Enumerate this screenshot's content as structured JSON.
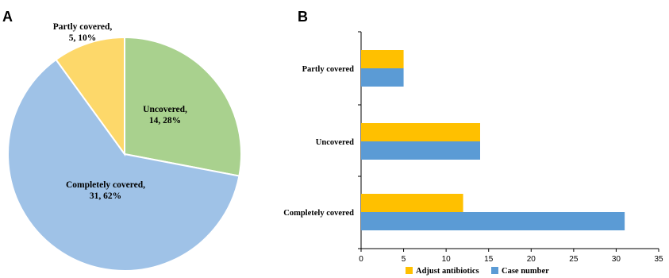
{
  "panels": {
    "a": "A",
    "b": "B"
  },
  "colors": {
    "completely_covered": "#9fc2e7",
    "uncovered": "#a9d18e",
    "partly_covered": "#fdd86a",
    "adjust_antibiotics": "#ffc000",
    "case_number": "#5b9bd5"
  },
  "chart_data": [
    {
      "type": "pie",
      "slices": [
        {
          "label_line1": "Uncovered,",
          "label_line2": "14, 28%",
          "value": 14,
          "percent": 28
        },
        {
          "label_line1": "Completely covered,",
          "label_line2": "31, 62%",
          "value": 31,
          "percent": 62
        },
        {
          "label_line1": "Partly covered,",
          "label_line2": "5, 10%",
          "value": 5,
          "percent": 10
        }
      ]
    },
    {
      "type": "bar",
      "orientation": "horizontal",
      "categories": [
        "Partly covered",
        "Uncovered",
        "Completely covered"
      ],
      "series": [
        {
          "name": "Adjust antibiotics",
          "values": [
            5,
            14,
            12
          ]
        },
        {
          "name": "Case number",
          "values": [
            5,
            14,
            31
          ]
        }
      ],
      "xlim": [
        0,
        35
      ],
      "xticks": [
        0,
        5,
        10,
        15,
        20,
        25,
        30,
        35
      ],
      "legend": "bottom"
    }
  ]
}
